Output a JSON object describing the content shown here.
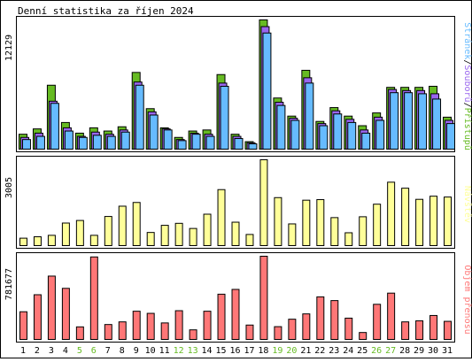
{
  "title": "Denní statistika za říjen 2024",
  "colors": {
    "hits": "#66bb22",
    "files": "#9966ee",
    "pages": "#66bbff",
    "visits": "#ffff99",
    "volume": "#ff7777",
    "weekend_label": "#66bb22",
    "weekday_label": "#000000"
  },
  "chart_data": [
    {
      "type": "bar",
      "title": "Denní statistika za říjen 2024",
      "categories": [
        "1",
        "2",
        "3",
        "4",
        "5",
        "6",
        "7",
        "8",
        "9",
        "10",
        "11",
        "12",
        "13",
        "14",
        "15",
        "16",
        "17",
        "18",
        "19",
        "20",
        "21",
        "22",
        "23",
        "24",
        "25",
        "26",
        "27",
        "28",
        "29",
        "30",
        "31"
      ],
      "weekend_days": [
        "5",
        "6",
        "12",
        "13",
        "19",
        "20",
        "26",
        "27"
      ],
      "ymax_label": "12129",
      "ylim": [
        0,
        12129
      ],
      "legend": {
        "text_parts": [
          "Stránek",
          "/",
          "Souborů",
          "/",
          "Přístupů"
        ],
        "placement": "right"
      },
      "series": [
        {
          "name": "Přístupů",
          "values": [
            1400,
            1900,
            6000,
            2500,
            1500,
            2000,
            1700,
            2100,
            7200,
            3800,
            2000,
            1100,
            1700,
            1800,
            7000,
            1400,
            700,
            12129,
            4800,
            3100,
            7400,
            2600,
            3900,
            3100,
            2200,
            3400,
            5800,
            5800,
            5800,
            5900,
            3000
          ]
        },
        {
          "name": "Souborů",
          "values": [
            1100,
            1500,
            4500,
            2000,
            1200,
            1600,
            1400,
            1800,
            6300,
            3500,
            1900,
            900,
            1500,
            1400,
            6200,
            1200,
            600,
            11500,
            4400,
            2900,
            6700,
            2400,
            3600,
            2800,
            1800,
            3000,
            5600,
            5500,
            5500,
            5200,
            2700
          ]
        },
        {
          "name": "Stránek",
          "values": [
            900,
            1200,
            4300,
            1700,
            1100,
            1300,
            1200,
            1600,
            6000,
            3200,
            1800,
            800,
            1400,
            1200,
            5900,
            1000,
            500,
            10900,
            4100,
            2700,
            6200,
            2200,
            3300,
            2500,
            1500,
            2700,
            5300,
            5300,
            5200,
            4700,
            2400
          ]
        }
      ]
    },
    {
      "type": "bar",
      "categories": [
        "1",
        "2",
        "3",
        "4",
        "5",
        "6",
        "7",
        "8",
        "9",
        "10",
        "11",
        "12",
        "13",
        "14",
        "15",
        "16",
        "17",
        "18",
        "19",
        "20",
        "21",
        "22",
        "23",
        "24",
        "25",
        "26",
        "27",
        "28",
        "29",
        "30",
        "31"
      ],
      "ymax_label": "3005",
      "ylim": [
        0,
        3005
      ],
      "legend": {
        "text_parts": [
          "Návštěv"
        ],
        "placement": "right"
      },
      "series": [
        {
          "name": "Návštěv",
          "values": [
            260,
            310,
            360,
            790,
            880,
            360,
            1020,
            1380,
            1510,
            460,
            710,
            780,
            600,
            1100,
            1960,
            820,
            390,
            3005,
            1680,
            760,
            1590,
            1610,
            980,
            450,
            1010,
            1450,
            2220,
            2010,
            1620,
            1730,
            1700
          ]
        }
      ]
    },
    {
      "type": "bar",
      "categories": [
        "1",
        "2",
        "3",
        "4",
        "5",
        "6",
        "7",
        "8",
        "9",
        "10",
        "11",
        "12",
        "13",
        "14",
        "15",
        "16",
        "17",
        "18",
        "19",
        "20",
        "21",
        "22",
        "23",
        "24",
        "25",
        "26",
        "27",
        "28",
        "29",
        "30",
        "31"
      ],
      "ymax_label": "781677",
      "ylim": [
        0,
        781677
      ],
      "legend": {
        "text_parts": [
          "Objem přenosu"
        ],
        "placement": "right"
      },
      "series": [
        {
          "name": "Objem přenosu",
          "values": [
            260000,
            420000,
            595000,
            480000,
            118000,
            775000,
            140000,
            165000,
            265000,
            245000,
            155000,
            270000,
            90000,
            265000,
            425000,
            470000,
            135000,
            781677,
            120000,
            190000,
            240000,
            400000,
            365000,
            200000,
            65000,
            330000,
            435000,
            165000,
            175000,
            225000,
            170000
          ]
        }
      ]
    }
  ]
}
